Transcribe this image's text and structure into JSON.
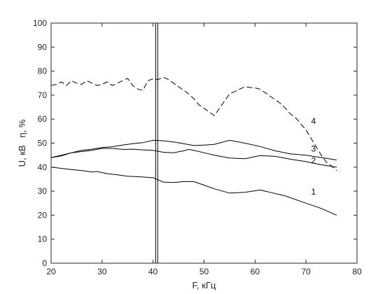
{
  "chart_data": {
    "type": "line",
    "xlabel": "F, кГц",
    "ylabel": "U, кВ   η, %",
    "xlim": [
      20,
      80
    ],
    "ylim": [
      0,
      100
    ],
    "xticks": [
      "20",
      "30",
      "40",
      "50",
      "60",
      "70",
      "80"
    ],
    "yticks": [
      "0",
      "10",
      "20",
      "30",
      "40",
      "50",
      "60",
      "70",
      "80",
      "90",
      "100"
    ],
    "grid": false,
    "vline_x": 40.5,
    "series": [
      {
        "name": "1",
        "style": "solid",
        "color": "#000000",
        "x": [
          20,
          22,
          24,
          26,
          28,
          29,
          31,
          33,
          35,
          38,
          40,
          42,
          44,
          46,
          48,
          50,
          52,
          55,
          58,
          61,
          63,
          66,
          70,
          73,
          76
        ],
        "y": [
          40,
          39.5,
          39,
          38.6,
          38,
          38.2,
          37.3,
          36.8,
          36.2,
          35.9,
          35.6,
          33.8,
          33.6,
          34,
          34,
          32.5,
          31,
          29.2,
          29.5,
          30.5,
          29.5,
          28,
          25,
          22.8,
          20
        ]
      },
      {
        "name": "2",
        "style": "solid",
        "color": "#000000",
        "x": [
          20,
          22,
          24,
          26,
          28,
          30,
          32,
          34,
          36,
          38,
          40,
          42,
          44,
          46,
          47,
          48,
          50,
          52,
          55,
          58,
          61,
          64,
          67,
          70,
          73,
          76
        ],
        "y": [
          44,
          45,
          46,
          46.5,
          47,
          47.8,
          47.8,
          47.4,
          47.5,
          47.2,
          47,
          46.2,
          46,
          46.8,
          47.4,
          47,
          46,
          45,
          43.8,
          43.5,
          44.8,
          44.5,
          43.3,
          42.3,
          41,
          40
        ]
      },
      {
        "name": "3",
        "style": "solid",
        "color": "#000000",
        "x": [
          20,
          22,
          24,
          26,
          28,
          30,
          32,
          34,
          36,
          38,
          40,
          42,
          44,
          46,
          48,
          50,
          52,
          55,
          58,
          61,
          64,
          67,
          70,
          73,
          76
        ],
        "y": [
          44,
          44.7,
          46,
          47,
          47.5,
          48.2,
          48.5,
          49.2,
          49.8,
          50.2,
          51.2,
          51,
          50.5,
          49.8,
          49,
          49.2,
          49.5,
          51.2,
          50,
          48.6,
          46.8,
          45.5,
          45,
          44,
          43
        ]
      },
      {
        "name": "4",
        "style": "dashed",
        "color": "#000000",
        "x": [
          20,
          21,
          22,
          23,
          24,
          25,
          26,
          27,
          28,
          29,
          30,
          31,
          32,
          33,
          34,
          35,
          36,
          37,
          38,
          39,
          40,
          41,
          42,
          43,
          44,
          45,
          46,
          47,
          48,
          49,
          50,
          51,
          52,
          53,
          54,
          55,
          56,
          57,
          58,
          59,
          60,
          61,
          62,
          63,
          64,
          65,
          66,
          67,
          68,
          69,
          70,
          71,
          72,
          73,
          74,
          75,
          76
        ],
        "y": [
          74,
          74.5,
          75.5,
          74,
          76,
          75,
          74.5,
          76,
          75,
          74,
          74.5,
          75.5,
          74,
          75,
          76,
          77,
          74,
          72.5,
          72,
          76,
          76.8,
          76.5,
          77.5,
          76.5,
          75,
          73.5,
          72,
          70.5,
          68.5,
          66,
          64.5,
          63,
          61.5,
          64.5,
          67.5,
          70.5,
          71.5,
          72.5,
          73.5,
          73.2,
          73,
          72.5,
          71,
          69.5,
          68,
          66.5,
          64.5,
          62,
          60.5,
          58,
          55.5,
          52,
          48.5,
          45,
          42,
          40.5,
          38.5
        ]
      }
    ],
    "labels": [
      {
        "text": "1",
        "x": 71,
        "y": 28.5
      },
      {
        "text": "2",
        "x": 71,
        "y": 41.5
      },
      {
        "text": "3",
        "x": 71,
        "y": 46.5
      },
      {
        "text": "4",
        "x": 71,
        "y": 58
      }
    ]
  }
}
